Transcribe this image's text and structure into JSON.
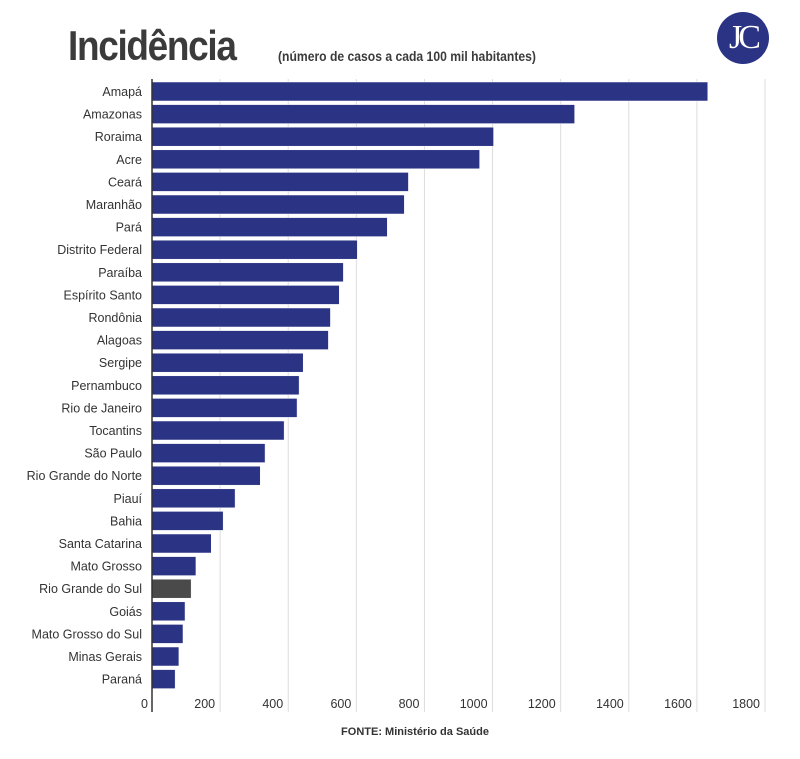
{
  "chart_data": {
    "type": "bar",
    "orientation": "horizontal",
    "title": "Incidência",
    "subtitle": "(número de casos a cada 100 mil habitantes)",
    "categories": [
      "Amapá",
      "Amazonas",
      "Roraima",
      "Acre",
      "Ceará",
      "Maranhão",
      "Pará",
      "Distrito Federal",
      "Paraíba",
      "Espírito Santo",
      "Rondônia",
      "Alagoas",
      "Sergipe",
      "Pernambuco",
      "Rio de Janeiro",
      "Tocantins",
      "São Paulo",
      "Rio Grande do Norte",
      "Piauí",
      "Bahia",
      "Santa Catarina",
      "Mato Grosso",
      "Rio Grande do Sul",
      "Goiás",
      "Mato Grosso do Sul",
      "Minas Gerais",
      "Paraná"
    ],
    "values": [
      1632,
      1241,
      1003,
      962,
      753,
      741,
      691,
      603,
      562,
      550,
      524,
      518,
      444,
      432,
      426,
      388,
      332,
      318,
      244,
      209,
      174,
      129,
      115,
      97,
      91,
      79,
      68
    ],
    "highlight": "Rio Grande do Sul",
    "xlim": [
      0,
      1800
    ],
    "xticks": [
      0,
      200,
      400,
      600,
      800,
      1000,
      1200,
      1400,
      1600,
      1800
    ],
    "grid": true,
    "legend": "none",
    "colors": {
      "bar": "#2b3384",
      "highlight": "#4a4a4a",
      "grid": "#dddddd"
    }
  },
  "source": "FONTE: Ministério da Saúde",
  "logo": {
    "text": "JC",
    "color": "#2b3384"
  }
}
